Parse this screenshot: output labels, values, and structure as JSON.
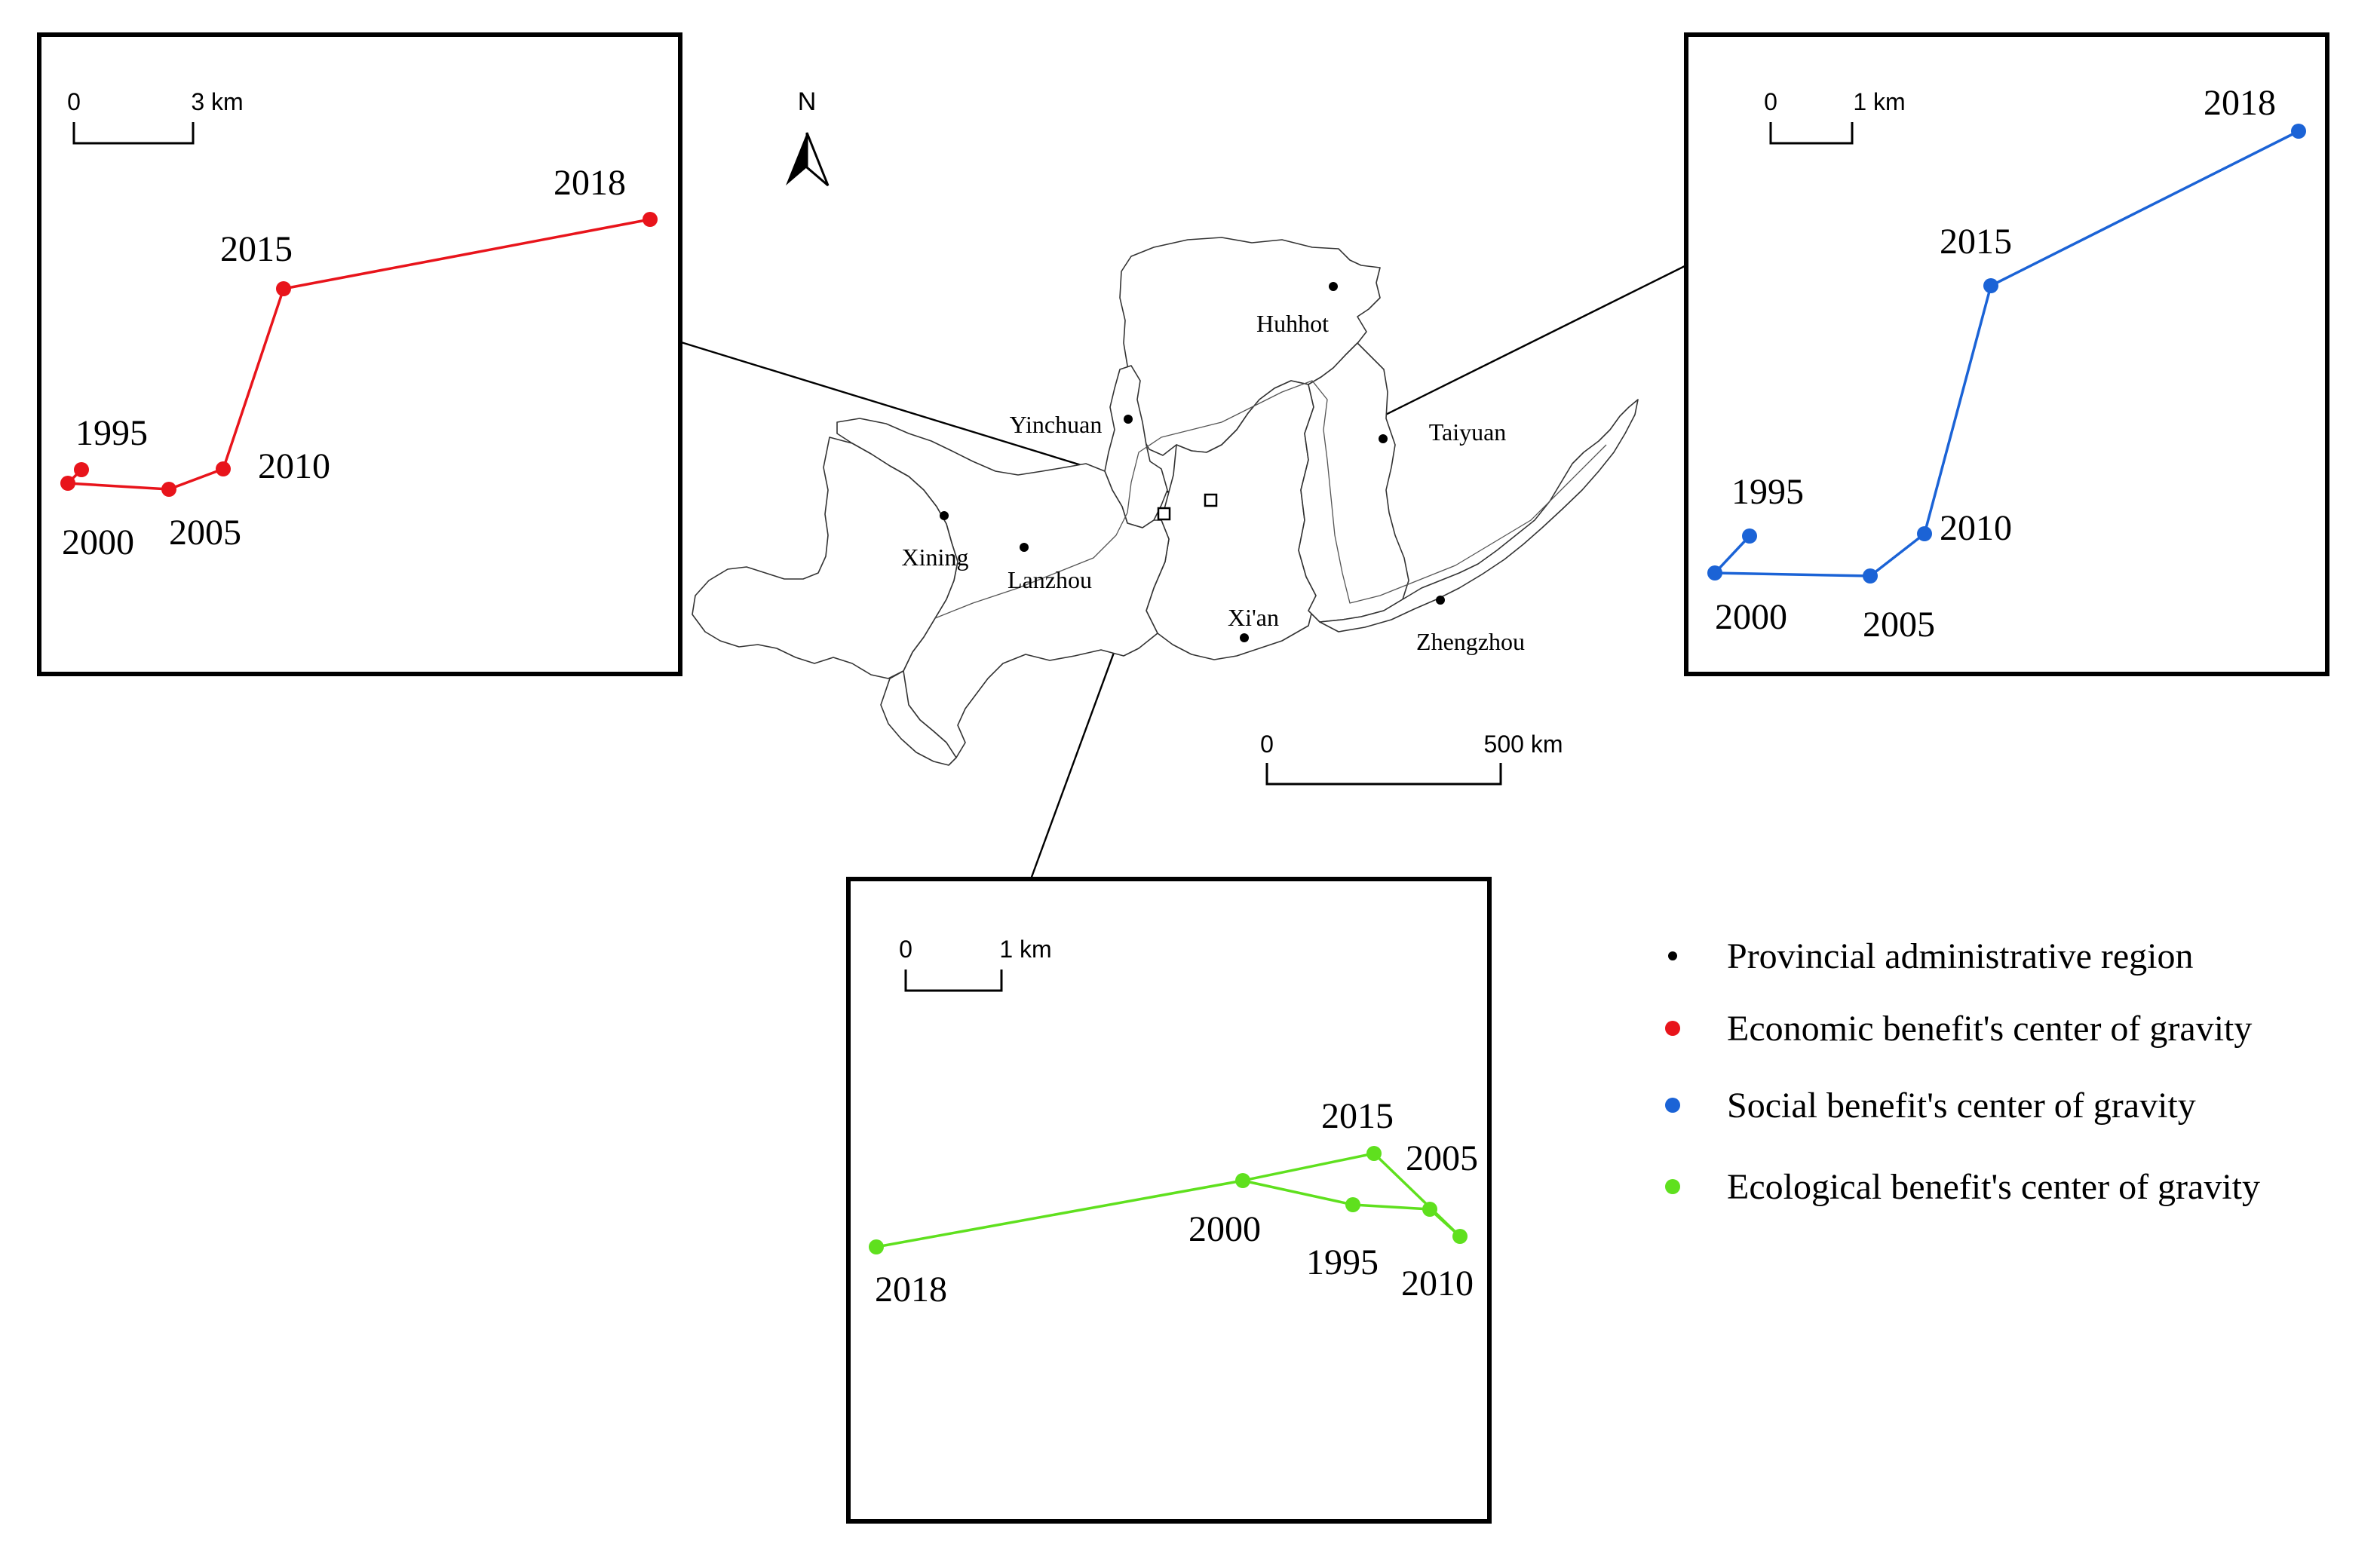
{
  "north_arrow": {
    "label": "N"
  },
  "cities": [
    {
      "name": "Huhhot"
    },
    {
      "name": "Yinchuan"
    },
    {
      "name": "Taiyuan"
    },
    {
      "name": "Xining"
    },
    {
      "name": "Lanzhou"
    },
    {
      "name": "Xi'an"
    },
    {
      "name": "Zhengzhou"
    }
  ],
  "main_scale": {
    "start": "0",
    "end": "500 km"
  },
  "economic_panel": {
    "color": "#e8141b",
    "scale": {
      "start": "0",
      "end": "3 km"
    },
    "points": [
      {
        "year": "1995"
      },
      {
        "year": "2000"
      },
      {
        "year": "2005"
      },
      {
        "year": "2010"
      },
      {
        "year": "2015"
      },
      {
        "year": "2018"
      }
    ]
  },
  "social_panel": {
    "color": "#1b63d6",
    "scale": {
      "start": "0",
      "end": "1 km"
    },
    "points": [
      {
        "year": "1995"
      },
      {
        "year": "2000"
      },
      {
        "year": "2005"
      },
      {
        "year": "2010"
      },
      {
        "year": "2015"
      },
      {
        "year": "2018"
      }
    ]
  },
  "ecological_panel": {
    "color": "#5fe01e",
    "scale": {
      "start": "0",
      "end": "1 km"
    },
    "points": [
      {
        "year": "1995"
      },
      {
        "year": "2000"
      },
      {
        "year": "2005"
      },
      {
        "year": "2010"
      },
      {
        "year": "2015"
      },
      {
        "year": "2018"
      }
    ]
  },
  "legend": [
    {
      "label": "Provincial administrative region",
      "color": "#000000",
      "icon": "small-black-dot"
    },
    {
      "label": "Economic benefit's center of gravity",
      "color": "#e8141b",
      "icon": "red-dot"
    },
    {
      "label": "Social benefit's center of gravity",
      "color": "#1b63d6",
      "icon": "blue-dot"
    },
    {
      "label": "Ecological benefit's center of gravity",
      "color": "#5fe01e",
      "icon": "green-dot"
    }
  ]
}
